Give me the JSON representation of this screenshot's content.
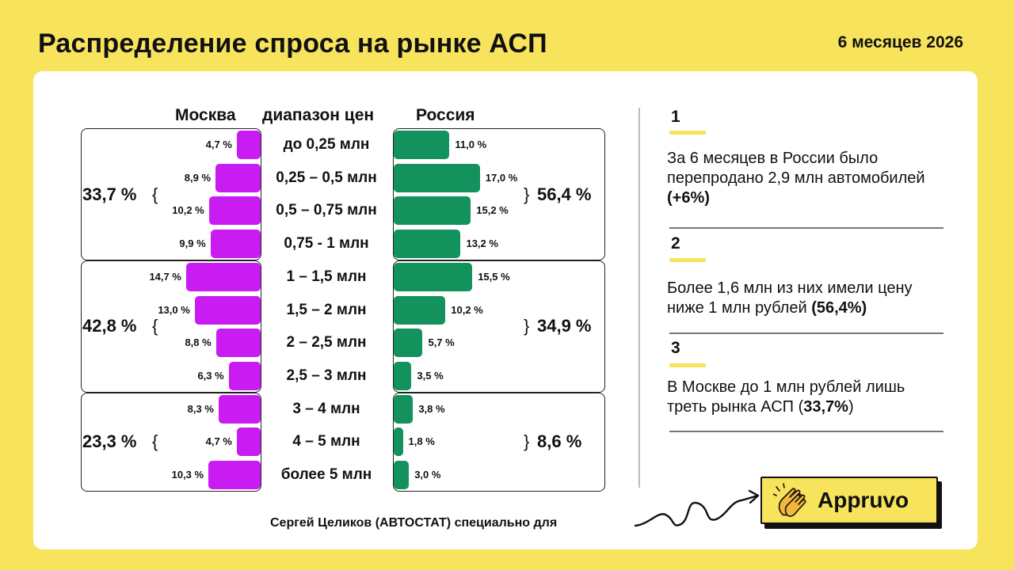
{
  "header": {
    "title": "Распределение спроса на рынке АСП",
    "period": "6 месяцев 2026"
  },
  "columns": {
    "moscow": "Москва",
    "range": "диапазон цен",
    "russia": "Россия"
  },
  "chart_data": {
    "type": "bar",
    "categories": [
      "до 0,25 млн",
      "0,25 – 0,5 млн",
      "0,5 – 0,75 млн",
      "0,75 - 1 млн",
      "1 – 1,5 млн",
      "1,5 – 2 млн",
      "2 – 2,5 млн",
      "2,5 – 3 млн",
      "3 – 4 млн",
      "4 – 5 млн",
      "более 5 млн"
    ],
    "series": [
      {
        "name": "Москва",
        "values": [
          4.7,
          8.9,
          10.2,
          9.9,
          14.7,
          13.0,
          8.8,
          6.3,
          8.3,
          4.7,
          10.3
        ],
        "labels": [
          "4,7 %",
          "8,9 %",
          "10,2 %",
          "9,9 %",
          "14,7 %",
          "13,0 %",
          "8,8 %",
          "6,3 %",
          "8,3 %",
          "4,7 %",
          "10,3 %"
        ],
        "color": "#C81CF2"
      },
      {
        "name": "Россия",
        "values": [
          11.0,
          17.0,
          15.2,
          13.2,
          15.5,
          10.2,
          5.7,
          3.5,
          3.8,
          1.8,
          3.0
        ],
        "labels": [
          "11,0 %",
          "17,0 %",
          "15,2 %",
          "13,2 %",
          "15,5 %",
          "10,2 %",
          "5,7 %",
          "3,5 %",
          "3,8 %",
          "1,8 %",
          "3,0 %"
        ],
        "color": "#13925D"
      }
    ],
    "groups": [
      {
        "rows": [
          0,
          3
        ],
        "moscow_total": "33,7 %",
        "russia_total": "56,4 %"
      },
      {
        "rows": [
          4,
          7
        ],
        "moscow_total": "42,8 %",
        "russia_total": "34,9 %"
      },
      {
        "rows": [
          8,
          10
        ],
        "moscow_total": "23,3 %",
        "russia_total": "8,6 %"
      }
    ]
  },
  "facts": [
    {
      "num": "1",
      "text": "За 6 месяцев в России было перепродано 2,9 млн автомобилей ",
      "bold": "(+6%)",
      "tail": ""
    },
    {
      "num": "2",
      "text": "Более 1,6 млн из них  имели цену ниже 1 млн рублей ",
      "bold": "(56,4%)",
      "tail": ""
    },
    {
      "num": "3",
      "text": "В Москве до 1 млн рублей лишь треть рынка АСП (",
      "bold": "33,7%",
      "tail": ")"
    }
  ],
  "footer": {
    "credit": "Сергей Целиков (АВТОСТАТ)  специально для",
    "logo": "Appruvo"
  }
}
